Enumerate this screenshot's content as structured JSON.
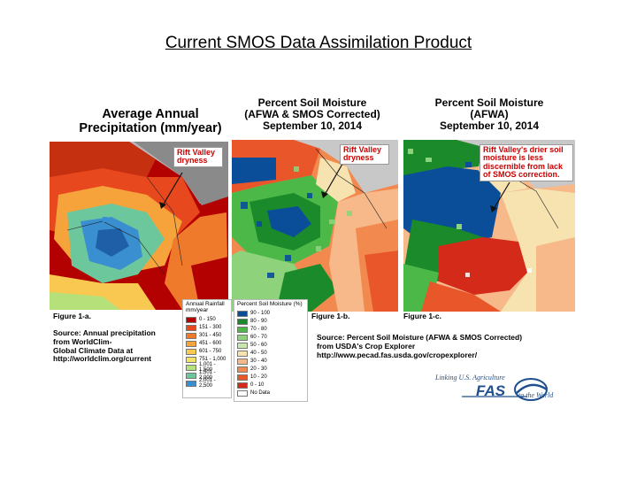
{
  "title": "Current SMOS Data Assimilation Product",
  "panels": {
    "a": {
      "title_line1": "Average Annual",
      "title_line2": "Precipitation (mm/year)",
      "callout": "Rift Valley dryness",
      "fig_label": "Figure 1-a.",
      "source": [
        "Source: Annual precipitation",
        "from WorldClim-",
        "Global Climate Data at",
        "http://worldclim.org/current"
      ],
      "legend_title": [
        "Annual Rainfall",
        "mm/year"
      ],
      "legend": [
        {
          "label": "0 - 150",
          "color": "#b30000"
        },
        {
          "label": "151 - 300",
          "color": "#e8481e"
        },
        {
          "label": "301 - 450",
          "color": "#f07a2c"
        },
        {
          "label": "451 - 600",
          "color": "#f6a33c"
        },
        {
          "label": "601 - 750",
          "color": "#f8c850"
        },
        {
          "label": "751 - 1,000",
          "color": "#f4e36a"
        },
        {
          "label": "1,001 - 1,500",
          "color": "#b5e07a"
        },
        {
          "label": "1,501 - 2,000",
          "color": "#6cc79c"
        },
        {
          "label": "2,001 - 2,500",
          "color": "#3a8fd0"
        }
      ]
    },
    "b": {
      "title_line1": "Percent Soil Moisture",
      "title_line2": "(AFWA & SMOS Corrected)",
      "title_line3": "September 10, 2014",
      "callout": "Rift Valley dryness",
      "fig_label": "Figure 1-b.",
      "legend_title": [
        "Percent Soil Moisture (%)"
      ],
      "legend": [
        {
          "label": "90 - 100",
          "color": "#0a4e9a"
        },
        {
          "label": "80 - 90",
          "color": "#1a8a2a"
        },
        {
          "label": "70 - 80",
          "color": "#4cb848"
        },
        {
          "label": "60 - 70",
          "color": "#8fd27c"
        },
        {
          "label": "50 - 60",
          "color": "#c8e8b0"
        },
        {
          "label": "40 - 50",
          "color": "#f6e3b0"
        },
        {
          "label": "30 - 40",
          "color": "#f7b98a"
        },
        {
          "label": "20 - 30",
          "color": "#f28a50"
        },
        {
          "label": "10 - 20",
          "color": "#e8562a"
        },
        {
          "label": "0 - 10",
          "color": "#d42a1a"
        },
        {
          "label": "No Data",
          "color": "#ffffff"
        }
      ]
    },
    "c": {
      "title_line1": "Percent Soil Moisture",
      "title_line2": "(AFWA)",
      "title_line3": "September 10, 2014",
      "callout": "Rift Valley's drier soil moisture is less discernible from lack of SMOS correction.",
      "fig_label": "Figure 1-c."
    }
  },
  "source_b": [
    "Source: Percent Soil Moisture (AFWA & SMOS Corrected)",
    "from USDA's Crop Explorer",
    "http://www.pecad.fas.usda.gov/cropexplorer/"
  ],
  "logo": {
    "tagline": "Linking U.S. Agriculture",
    "main": "FAS",
    "sub": "to the World"
  }
}
